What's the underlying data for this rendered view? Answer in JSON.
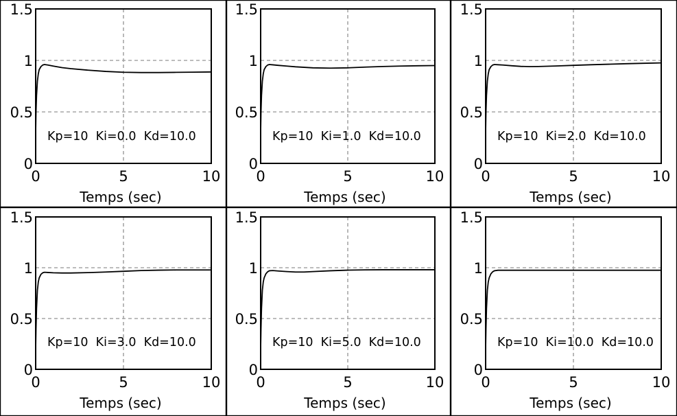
{
  "figure": {
    "layout": "2x3 grid of step-response plots"
  },
  "chart_data": [
    {
      "type": "line",
      "title": "",
      "xlabel": "Temps (sec)",
      "ylabel": "",
      "xlim": [
        0,
        10
      ],
      "ylim": [
        0,
        1.5
      ],
      "xticks": [
        "0",
        "5",
        "10"
      ],
      "yticks": [
        "0",
        "0.5",
        "1",
        "1.5"
      ],
      "grid": true,
      "annotation": "Kp=10  Ki=0.0  Kd=10.0",
      "series": [
        {
          "name": "response",
          "x": [
            0,
            0.02,
            0.05,
            0.1,
            0.15,
            0.2,
            0.3,
            0.4,
            0.5,
            0.7,
            1,
            1.5,
            2,
            3,
            4,
            5,
            6,
            7,
            8,
            9,
            10
          ],
          "y": [
            0.3,
            0.5,
            0.66,
            0.8,
            0.87,
            0.91,
            0.94,
            0.955,
            0.96,
            0.955,
            0.945,
            0.93,
            0.92,
            0.905,
            0.893,
            0.885,
            0.882,
            0.882,
            0.884,
            0.886,
            0.888
          ]
        }
      ]
    },
    {
      "type": "line",
      "title": "",
      "xlabel": "Temps (sec)",
      "ylabel": "",
      "xlim": [
        0,
        10
      ],
      "ylim": [
        0,
        1.5
      ],
      "xticks": [
        "0",
        "5",
        "10"
      ],
      "yticks": [
        "0",
        "0.5",
        "1",
        "1.5"
      ],
      "grid": true,
      "annotation": "Kp=10  Ki=1.0  Kd=10.0",
      "series": [
        {
          "name": "response",
          "x": [
            0,
            0.02,
            0.05,
            0.1,
            0.15,
            0.2,
            0.3,
            0.4,
            0.5,
            0.7,
            1,
            1.5,
            2,
            3,
            4,
            5,
            6,
            7,
            8,
            9,
            10
          ],
          "y": [
            0.3,
            0.5,
            0.66,
            0.8,
            0.87,
            0.91,
            0.94,
            0.955,
            0.96,
            0.957,
            0.952,
            0.945,
            0.938,
            0.928,
            0.925,
            0.928,
            0.935,
            0.941,
            0.945,
            0.948,
            0.95
          ]
        }
      ]
    },
    {
      "type": "line",
      "title": "",
      "xlabel": "Temps (sec)",
      "ylabel": "",
      "xlim": [
        0,
        10
      ],
      "ylim": [
        0,
        1.5
      ],
      "xticks": [
        "0",
        "5",
        "10"
      ],
      "yticks": [
        "0",
        "0.5",
        "1",
        "1.5"
      ],
      "grid": true,
      "annotation": "Kp=10  Ki=2.0  Kd=10.0",
      "series": [
        {
          "name": "response",
          "x": [
            0,
            0.02,
            0.05,
            0.1,
            0.15,
            0.2,
            0.3,
            0.4,
            0.5,
            0.7,
            1,
            1.5,
            2,
            2.5,
            3,
            4,
            5,
            6,
            7,
            8,
            9,
            10
          ],
          "y": [
            0.3,
            0.5,
            0.66,
            0.8,
            0.87,
            0.91,
            0.94,
            0.955,
            0.96,
            0.958,
            0.955,
            0.948,
            0.942,
            0.94,
            0.941,
            0.946,
            0.952,
            0.958,
            0.963,
            0.968,
            0.972,
            0.976
          ]
        }
      ]
    },
    {
      "type": "line",
      "title": "",
      "xlabel": "Temps (sec)",
      "ylabel": "",
      "xlim": [
        0,
        10
      ],
      "ylim": [
        0,
        1.5
      ],
      "xticks": [
        "0",
        "5",
        "10"
      ],
      "yticks": [
        "0",
        "0.5",
        "1",
        "1.5"
      ],
      "grid": true,
      "annotation": "Kp=10  Ki=3.0  Kd=10.0",
      "series": [
        {
          "name": "response",
          "x": [
            0,
            0.02,
            0.05,
            0.1,
            0.15,
            0.2,
            0.3,
            0.4,
            0.5,
            0.7,
            1,
            1.5,
            2,
            3,
            4,
            5,
            6,
            7,
            8,
            9,
            10
          ],
          "y": [
            0.2,
            0.4,
            0.6,
            0.78,
            0.86,
            0.9,
            0.935,
            0.95,
            0.955,
            0.953,
            0.95,
            0.948,
            0.948,
            0.952,
            0.958,
            0.965,
            0.972,
            0.976,
            0.978,
            0.978,
            0.978
          ]
        }
      ]
    },
    {
      "type": "line",
      "title": "",
      "xlabel": "Temps (sec)",
      "ylabel": "",
      "xlim": [
        0,
        10
      ],
      "ylim": [
        0,
        1.5
      ],
      "xticks": [
        "0",
        "5",
        "10"
      ],
      "yticks": [
        "0",
        "0.5",
        "1",
        "1.5"
      ],
      "grid": true,
      "annotation": "Kp=10  Ki=5.0  Kd=10.0",
      "series": [
        {
          "name": "response",
          "x": [
            0,
            0.02,
            0.05,
            0.1,
            0.15,
            0.2,
            0.3,
            0.4,
            0.5,
            0.7,
            1,
            1.5,
            2,
            2.5,
            3,
            4,
            5,
            6,
            7,
            8,
            9,
            10
          ],
          "y": [
            0.2,
            0.4,
            0.6,
            0.78,
            0.86,
            0.9,
            0.94,
            0.96,
            0.97,
            0.972,
            0.968,
            0.962,
            0.958,
            0.958,
            0.962,
            0.97,
            0.976,
            0.979,
            0.98,
            0.98,
            0.98,
            0.98
          ]
        }
      ]
    },
    {
      "type": "line",
      "title": "",
      "xlabel": "Temps (sec)",
      "ylabel": "",
      "xlim": [
        0,
        10
      ],
      "ylim": [
        0,
        1.5
      ],
      "xticks": [
        "0",
        "5",
        "10"
      ],
      "yticks": [
        "0",
        "0.5",
        "1",
        "1.5"
      ],
      "grid": true,
      "annotation": "Kp=10  Ki=10.0  Kd=10.0",
      "series": [
        {
          "name": "response",
          "x": [
            0,
            0.02,
            0.05,
            0.1,
            0.15,
            0.2,
            0.3,
            0.4,
            0.5,
            0.7,
            1,
            2,
            3,
            4,
            5,
            6,
            7,
            8,
            9,
            10
          ],
          "y": [
            0.2,
            0.4,
            0.6,
            0.78,
            0.86,
            0.9,
            0.94,
            0.96,
            0.97,
            0.975,
            0.975,
            0.975,
            0.975,
            0.975,
            0.975,
            0.975,
            0.975,
            0.975,
            0.975,
            0.975
          ]
        }
      ]
    }
  ]
}
